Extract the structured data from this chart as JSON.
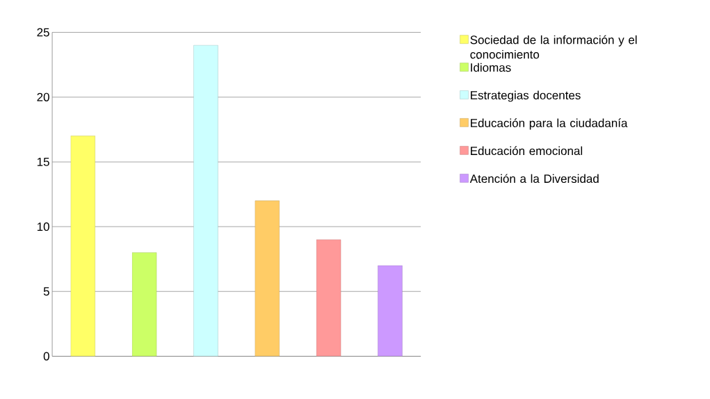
{
  "chart_data": {
    "type": "bar",
    "categories": [
      null,
      null,
      null,
      null,
      null,
      null
    ],
    "series": [
      {
        "name": "Sociedad de la información y el conocimiento",
        "color": "#ffff66",
        "values": [
          17,
          null,
          null,
          null,
          null,
          null
        ]
      },
      {
        "name": "Idiomas",
        "color": "#ccff66",
        "values": [
          null,
          8,
          null,
          null,
          null,
          null
        ]
      },
      {
        "name": "Estrategias docentes",
        "color": "#ccffff",
        "values": [
          null,
          null,
          24,
          null,
          null,
          null
        ]
      },
      {
        "name": "Educación para la ciudadanía",
        "color": "#ffcc66",
        "values": [
          null,
          null,
          null,
          12,
          null,
          null
        ]
      },
      {
        "name": "Educación emocional",
        "color": "#ff9999",
        "values": [
          null,
          null,
          null,
          null,
          9,
          null
        ]
      },
      {
        "name": "Atención a la Diversidad",
        "color": "#cc99ff",
        "values": [
          null,
          null,
          null,
          null,
          null,
          7
        ]
      }
    ],
    "ylim": [
      0,
      25
    ],
    "yticks": [
      0,
      5,
      10,
      15,
      20,
      25
    ],
    "grid": "y",
    "legend": "right",
    "tick_labels": "y"
  }
}
